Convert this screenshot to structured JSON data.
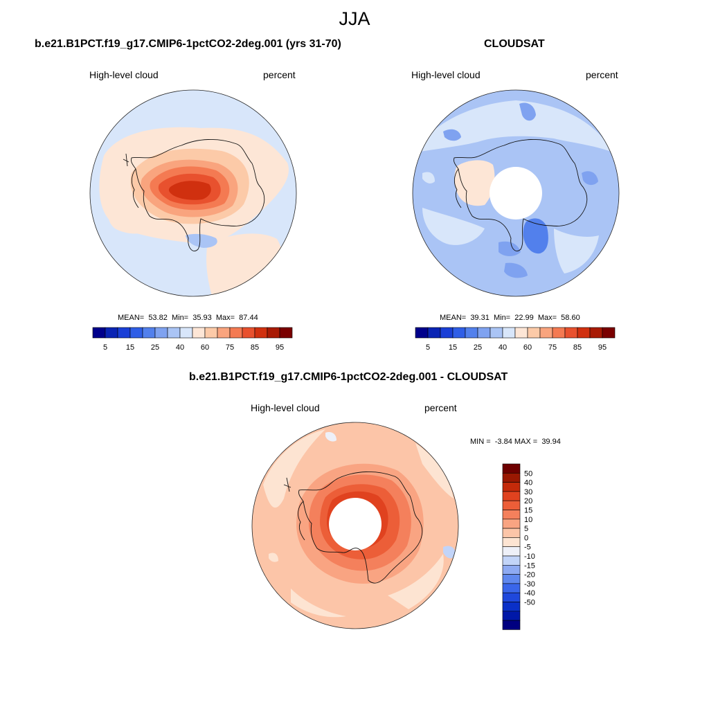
{
  "page": {
    "season": "JJA"
  },
  "panels": [
    {
      "title": "b.e21.B1PCT.f19_g17.CMIP6-1pctCO2-2deg.001 (yrs 31-70)",
      "variable": "High-level cloud",
      "units": "percent",
      "stats": "MEAN=  53.82  Min=  35.93  Max=  87.44"
    },
    {
      "title": "CLOUDSAT",
      "variable": "High-level cloud",
      "units": "percent",
      "stats": "MEAN=  39.31  Min=  22.99  Max=  58.60"
    },
    {
      "title": "b.e21.B1PCT.f19_g17.CMIP6-1pctCO2-2deg.001 - CLOUDSAT",
      "variable": "High-level cloud",
      "units": "percent",
      "stats": "MIN =  -3.84 MAX =  39.94"
    }
  ],
  "colorbars": {
    "absolute": {
      "colors": [
        "#00008b",
        "#0a24b4",
        "#1a3fd6",
        "#2f5ee6",
        "#5280ec",
        "#7fa2f0",
        "#aac4f5",
        "#d8e6fa",
        "#fde6d6",
        "#fccaa8",
        "#f9a47e",
        "#f47a52",
        "#e8512e",
        "#d0300f",
        "#a81a04",
        "#7a0000"
      ],
      "labels": [
        "5",
        "15",
        "25",
        "40",
        "60",
        "75",
        "85",
        "95"
      ]
    },
    "difference": {
      "colors": [
        "#000080",
        "#0018a8",
        "#0a30c8",
        "#1f48dc",
        "#3a66ea",
        "#6088ee",
        "#8eaaf2",
        "#c2d4f8",
        "#eef0f8",
        "#fde4d2",
        "#fcc5a8",
        "#f9a482",
        "#f4805c",
        "#ec5e38",
        "#e0421f",
        "#c42a0a",
        "#9a1802",
        "#6e0000"
      ],
      "labels": [
        "50",
        "40",
        "30",
        "20",
        "15",
        "10",
        "5",
        "0",
        "-5",
        "-10",
        "-15",
        "-20",
        "-30",
        "-40",
        "-50"
      ]
    }
  }
}
